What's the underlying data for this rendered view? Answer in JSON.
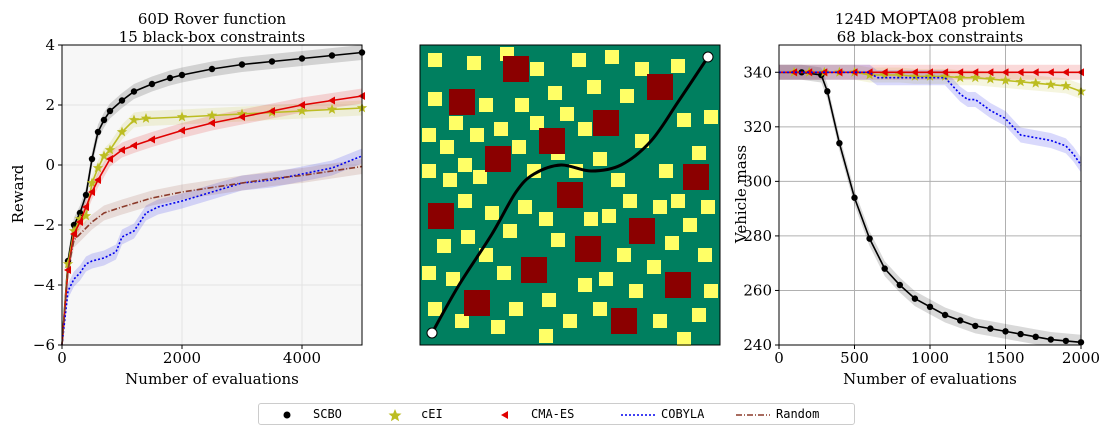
{
  "chart_data": [
    {
      "type": "line",
      "title": "60D Rover function",
      "subtitle": "15 black-box constraints",
      "xlabel": "Number of evaluations",
      "ylabel": "Reward",
      "xlim": [
        0,
        5000
      ],
      "ylim": [
        -6,
        4
      ],
      "xticks": [
        "0",
        "2000",
        "4000"
      ],
      "yticks": [
        "−6",
        "−4",
        "−2",
        "0",
        "2",
        "4"
      ],
      "grid": true,
      "series": [
        {
          "name": "SCBO",
          "color": "#000000",
          "marker": "circle",
          "x": [
            0,
            100,
            200,
            300,
            400,
            500,
            600,
            700,
            800,
            1000,
            1200,
            1500,
            1800,
            2000,
            2500,
            3000,
            3500,
            4000,
            4500,
            5000
          ],
          "y": [
            -6,
            -3.2,
            -2.0,
            -1.6,
            -1.0,
            0.2,
            1.1,
            1.5,
            1.8,
            2.15,
            2.45,
            2.7,
            2.9,
            3.0,
            3.2,
            3.35,
            3.45,
            3.55,
            3.65,
            3.75
          ]
        },
        {
          "name": "cEI",
          "color": "#bcbd22",
          "marker": "star",
          "x": [
            0,
            100,
            200,
            300,
            400,
            500,
            600,
            700,
            800,
            1000,
            1200,
            1400,
            2000,
            2500,
            3000,
            3500,
            4000,
            4500,
            5000
          ],
          "y": [
            -6,
            -3.3,
            -2.2,
            -1.8,
            -1.7,
            -0.6,
            -0.1,
            0.3,
            0.5,
            1.1,
            1.5,
            1.55,
            1.6,
            1.65,
            1.7,
            1.75,
            1.8,
            1.85,
            1.9
          ]
        },
        {
          "name": "CMA-ES",
          "color": "#e00000",
          "marker": "triangle-left",
          "x": [
            0,
            100,
            200,
            300,
            400,
            500,
            600,
            800,
            1000,
            1200,
            1500,
            2000,
            2500,
            3000,
            3500,
            4000,
            4500,
            5000
          ],
          "y": [
            -6,
            -3.5,
            -2.3,
            -1.9,
            -1.4,
            -0.9,
            -0.5,
            0.2,
            0.5,
            0.65,
            0.85,
            1.15,
            1.4,
            1.6,
            1.8,
            2.0,
            2.15,
            2.3
          ]
        },
        {
          "name": "COBYLA",
          "color": "#0000ee",
          "marker": "none",
          "dash": "2,2",
          "x": [
            0,
            100,
            200,
            300,
            400,
            500,
            700,
            900,
            1000,
            1200,
            1400,
            1600,
            2000,
            2500,
            3000,
            3500,
            4000,
            4500,
            5000
          ],
          "y": [
            -6,
            -4.2,
            -3.8,
            -3.6,
            -3.3,
            -3.2,
            -3.1,
            -2.9,
            -2.4,
            -2.2,
            -1.6,
            -1.4,
            -1.2,
            -0.9,
            -0.6,
            -0.5,
            -0.3,
            -0.1,
            0.3
          ]
        },
        {
          "name": "Random",
          "color": "#8b3a2a",
          "marker": "none",
          "dash": "6,2,1,2",
          "x": [
            0,
            100,
            200,
            300,
            400,
            500,
            700,
            1000,
            1500,
            2000,
            2500,
            3000,
            3500,
            4000,
            4500,
            5000
          ],
          "y": [
            -6,
            -3.5,
            -2.5,
            -2.3,
            -2.1,
            -1.9,
            -1.6,
            -1.4,
            -1.1,
            -0.9,
            -0.75,
            -0.6,
            -0.45,
            -0.35,
            -0.2,
            -0.05
          ]
        }
      ]
    },
    {
      "type": "other",
      "obstacle_color": "#8b0000",
      "field_color": "#007f5f",
      "marker_color": "#ffff66",
      "path_color": "#000000",
      "path": [
        [
          0.04,
          0.04
        ],
        [
          0.13,
          0.2
        ],
        [
          0.24,
          0.37
        ],
        [
          0.32,
          0.51
        ],
        [
          0.38,
          0.57
        ],
        [
          0.47,
          0.6
        ],
        [
          0.57,
          0.58
        ],
        [
          0.67,
          0.6
        ],
        [
          0.77,
          0.68
        ],
        [
          0.86,
          0.81
        ],
        [
          0.96,
          0.96
        ]
      ],
      "obstacles": [
        [
          0.32,
          0.92
        ],
        [
          0.14,
          0.81
        ],
        [
          0.44,
          0.68
        ],
        [
          0.26,
          0.62
        ],
        [
          0.62,
          0.74
        ],
        [
          0.8,
          0.86
        ],
        [
          0.07,
          0.43
        ],
        [
          0.5,
          0.5
        ],
        [
          0.92,
          0.56
        ],
        [
          0.38,
          0.25
        ],
        [
          0.56,
          0.32
        ],
        [
          0.74,
          0.38
        ],
        [
          0.19,
          0.14
        ],
        [
          0.86,
          0.2
        ],
        [
          0.68,
          0.08
        ]
      ],
      "squares": [
        [
          0.03,
          0.7
        ],
        [
          0.09,
          0.66
        ],
        [
          0.05,
          0.95
        ],
        [
          0.18,
          0.94
        ],
        [
          0.22,
          0.8
        ],
        [
          0.29,
          0.97
        ],
        [
          0.39,
          0.92
        ],
        [
          0.45,
          0.84
        ],
        [
          0.53,
          0.95
        ],
        [
          0.58,
          0.86
        ],
        [
          0.64,
          0.96
        ],
        [
          0.69,
          0.83
        ],
        [
          0.74,
          0.92
        ],
        [
          0.86,
          0.93
        ],
        [
          0.88,
          0.75
        ],
        [
          0.93,
          0.64
        ],
        [
          0.82,
          0.58
        ],
        [
          0.74,
          0.68
        ],
        [
          0.66,
          0.55
        ],
        [
          0.6,
          0.62
        ],
        [
          0.55,
          0.72
        ],
        [
          0.49,
          0.77
        ],
        [
          0.39,
          0.74
        ],
        [
          0.34,
          0.8
        ],
        [
          0.27,
          0.72
        ],
        [
          0.19,
          0.7
        ],
        [
          0.12,
          0.74
        ],
        [
          0.05,
          0.82
        ],
        [
          0.03,
          0.58
        ],
        [
          0.1,
          0.55
        ],
        [
          0.15,
          0.48
        ],
        [
          0.2,
          0.56
        ],
        [
          0.08,
          0.33
        ],
        [
          0.03,
          0.24
        ],
        [
          0.11,
          0.22
        ],
        [
          0.05,
          0.12
        ],
        [
          0.14,
          0.08
        ],
        [
          0.26,
          0.06
        ],
        [
          0.32,
          0.12
        ],
        [
          0.28,
          0.24
        ],
        [
          0.22,
          0.3
        ],
        [
          0.3,
          0.38
        ],
        [
          0.35,
          0.46
        ],
        [
          0.42,
          0.42
        ],
        [
          0.46,
          0.35
        ],
        [
          0.43,
          0.15
        ],
        [
          0.5,
          0.08
        ],
        [
          0.55,
          0.2
        ],
        [
          0.62,
          0.22
        ],
        [
          0.68,
          0.3
        ],
        [
          0.72,
          0.18
        ],
        [
          0.78,
          0.26
        ],
        [
          0.84,
          0.34
        ],
        [
          0.9,
          0.4
        ],
        [
          0.95,
          0.3
        ],
        [
          0.93,
          0.1
        ],
        [
          0.8,
          0.08
        ],
        [
          0.6,
          0.12
        ],
        [
          0.63,
          0.43
        ],
        [
          0.7,
          0.48
        ],
        [
          0.8,
          0.46
        ],
        [
          0.86,
          0.48
        ],
        [
          0.96,
          0.46
        ],
        [
          0.97,
          0.76
        ],
        [
          0.46,
          0.64
        ],
        [
          0.52,
          0.58
        ],
        [
          0.38,
          0.58
        ],
        [
          0.24,
          0.44
        ],
        [
          0.16,
          0.36
        ],
        [
          0.42,
          0.03
        ],
        [
          0.88,
          0.02
        ],
        [
          0.97,
          0.18
        ],
        [
          0.15,
          0.6
        ],
        [
          0.33,
          0.66
        ],
        [
          0.57,
          0.42
        ]
      ]
    },
    {
      "type": "line",
      "title": "124D MOPTA08 problem",
      "subtitle": "68 black-box constraints",
      "xlabel": "Number of evaluations",
      "ylabel": "Vehicle mass",
      "xlim": [
        0,
        2000
      ],
      "ylim": [
        240,
        350
      ],
      "xticks": [
        "0",
        "500",
        "1000",
        "1500",
        "2000"
      ],
      "yticks": [
        "240",
        "260",
        "280",
        "300",
        "320",
        "340"
      ],
      "grid": true,
      "series": [
        {
          "name": "SCBO",
          "color": "#000000",
          "marker": "circle",
          "x": [
            0,
            150,
            280,
            320,
            400,
            500,
            600,
            700,
            800,
            900,
            1000,
            1100,
            1200,
            1300,
            1400,
            1500,
            1600,
            1700,
            1800,
            1900,
            2000
          ],
          "y": [
            340,
            340,
            339,
            333,
            314,
            294,
            279,
            268,
            262,
            257,
            254,
            251,
            249,
            247,
            246,
            245,
            244,
            243,
            242,
            241.5,
            241
          ]
        },
        {
          "name": "cEI",
          "color": "#bcbd22",
          "marker": "star",
          "x": [
            0,
            100,
            200,
            300,
            400,
            500,
            600,
            700,
            800,
            900,
            1000,
            1100,
            1200,
            1300,
            1400,
            1500,
            1600,
            1700,
            1800,
            1900,
            2000
          ],
          "y": [
            340,
            340,
            340,
            340,
            340,
            340,
            339,
            339,
            339,
            338.5,
            338.5,
            338.5,
            338,
            338,
            337.5,
            337,
            336.5,
            336,
            335.5,
            335,
            333
          ]
        },
        {
          "name": "CMA-ES",
          "color": "#e00000",
          "marker": "triangle-left",
          "x": [
            0,
            100,
            200,
            300,
            400,
            500,
            600,
            700,
            800,
            900,
            1000,
            1100,
            1200,
            1300,
            1400,
            1500,
            1600,
            1700,
            1800,
            1900,
            2000
          ],
          "y": [
            340,
            340,
            340,
            340,
            340,
            340,
            340,
            340,
            340,
            340,
            340,
            340,
            340,
            340,
            340,
            340,
            340,
            340,
            340,
            340,
            340
          ]
        },
        {
          "name": "COBYLA",
          "color": "#0000ee",
          "marker": "none",
          "dash": "2,2",
          "x": [
            0,
            600,
            650,
            1100,
            1200,
            1250,
            1300,
            1400,
            1500,
            1550,
            1600,
            1700,
            1800,
            1900,
            1950,
            2000
          ],
          "y": [
            340,
            340,
            338,
            338,
            332,
            330,
            330,
            326,
            323,
            320,
            317,
            316,
            315,
            313,
            310,
            306
          ]
        }
      ]
    }
  ],
  "legend": [
    {
      "name": "SCBO",
      "color": "#000000",
      "marker": "circle"
    },
    {
      "name": "cEI",
      "color": "#bcbd22",
      "marker": "star"
    },
    {
      "name": "CMA-ES",
      "color": "#e00000",
      "marker": "triangle-left"
    },
    {
      "name": "COBYLA",
      "color": "#0000ee",
      "marker": "none"
    },
    {
      "name": "Random",
      "color": "#8b3a2a",
      "marker": "none"
    }
  ]
}
